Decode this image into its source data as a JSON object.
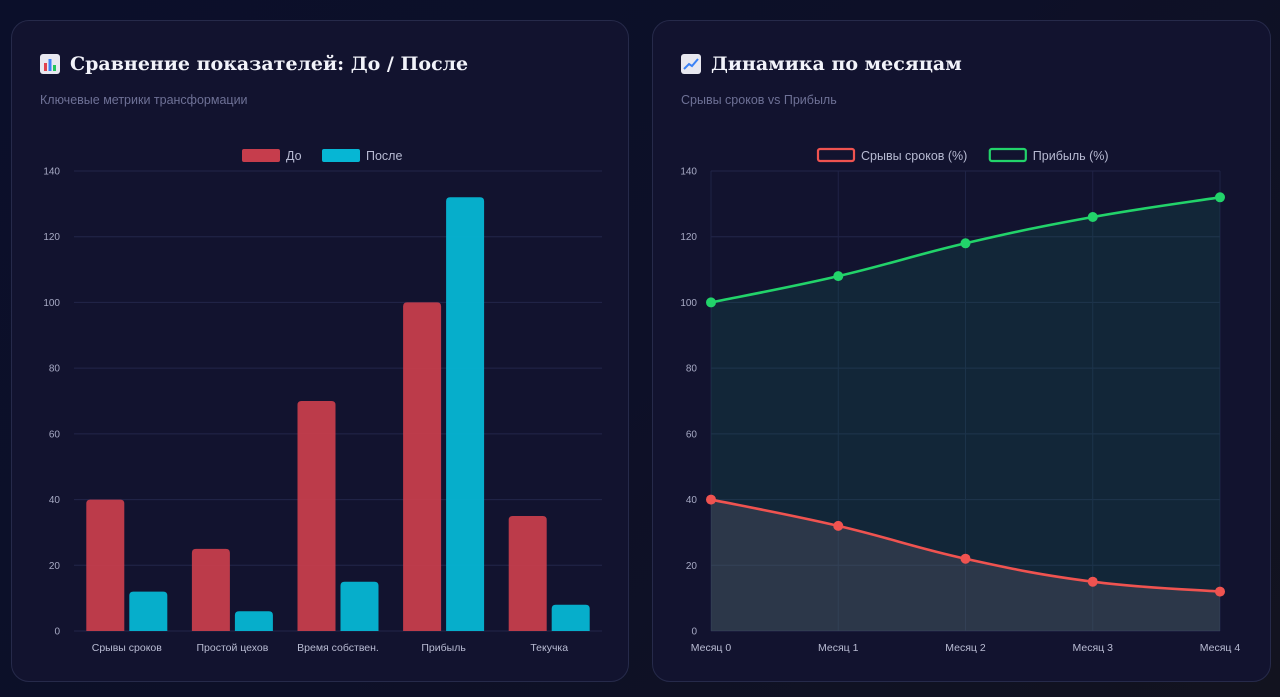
{
  "cards": [
    {
      "title": "Сравнение показателей: До / После",
      "icon": "bar-chart-icon",
      "subtitle": "Ключевые метрики трансформации"
    },
    {
      "title": "Динамика по месяцам",
      "icon": "line-chart-icon",
      "subtitle": "Срывы сроков vs Прибыль"
    }
  ],
  "chart_data": [
    {
      "type": "bar",
      "categories": [
        "Срывы сроков",
        "Простой цехов",
        "Время собствен.",
        "Прибыль",
        "Текучка"
      ],
      "series": [
        {
          "name": "До",
          "values": [
            40,
            25,
            70,
            100,
            35
          ],
          "color": "#c63d4c"
        },
        {
          "name": "После",
          "values": [
            12,
            6,
            15,
            132,
            8
          ],
          "color": "#06b6d4"
        }
      ],
      "ylim": [
        0,
        140
      ],
      "yticks": [
        0,
        20,
        40,
        60,
        80,
        100,
        120,
        140
      ],
      "grid": true,
      "legend": "top-center"
    },
    {
      "type": "line",
      "categories": [
        "Месяц 0",
        "Месяц 1",
        "Месяц 2",
        "Месяц 3",
        "Месяц 4"
      ],
      "series": [
        {
          "name": "Срывы сроков (%)",
          "values": [
            40,
            32,
            22,
            15,
            12
          ],
          "color": "#ef5350",
          "fill": true
        },
        {
          "name": "Прибыль (%)",
          "values": [
            100,
            108,
            118,
            126,
            132
          ],
          "color": "#22d36a",
          "fill": true
        }
      ],
      "ylim": [
        0,
        140
      ],
      "yticks": [
        0,
        20,
        40,
        60,
        80,
        100,
        120,
        140
      ],
      "grid": true,
      "legend": "top-center"
    }
  ]
}
